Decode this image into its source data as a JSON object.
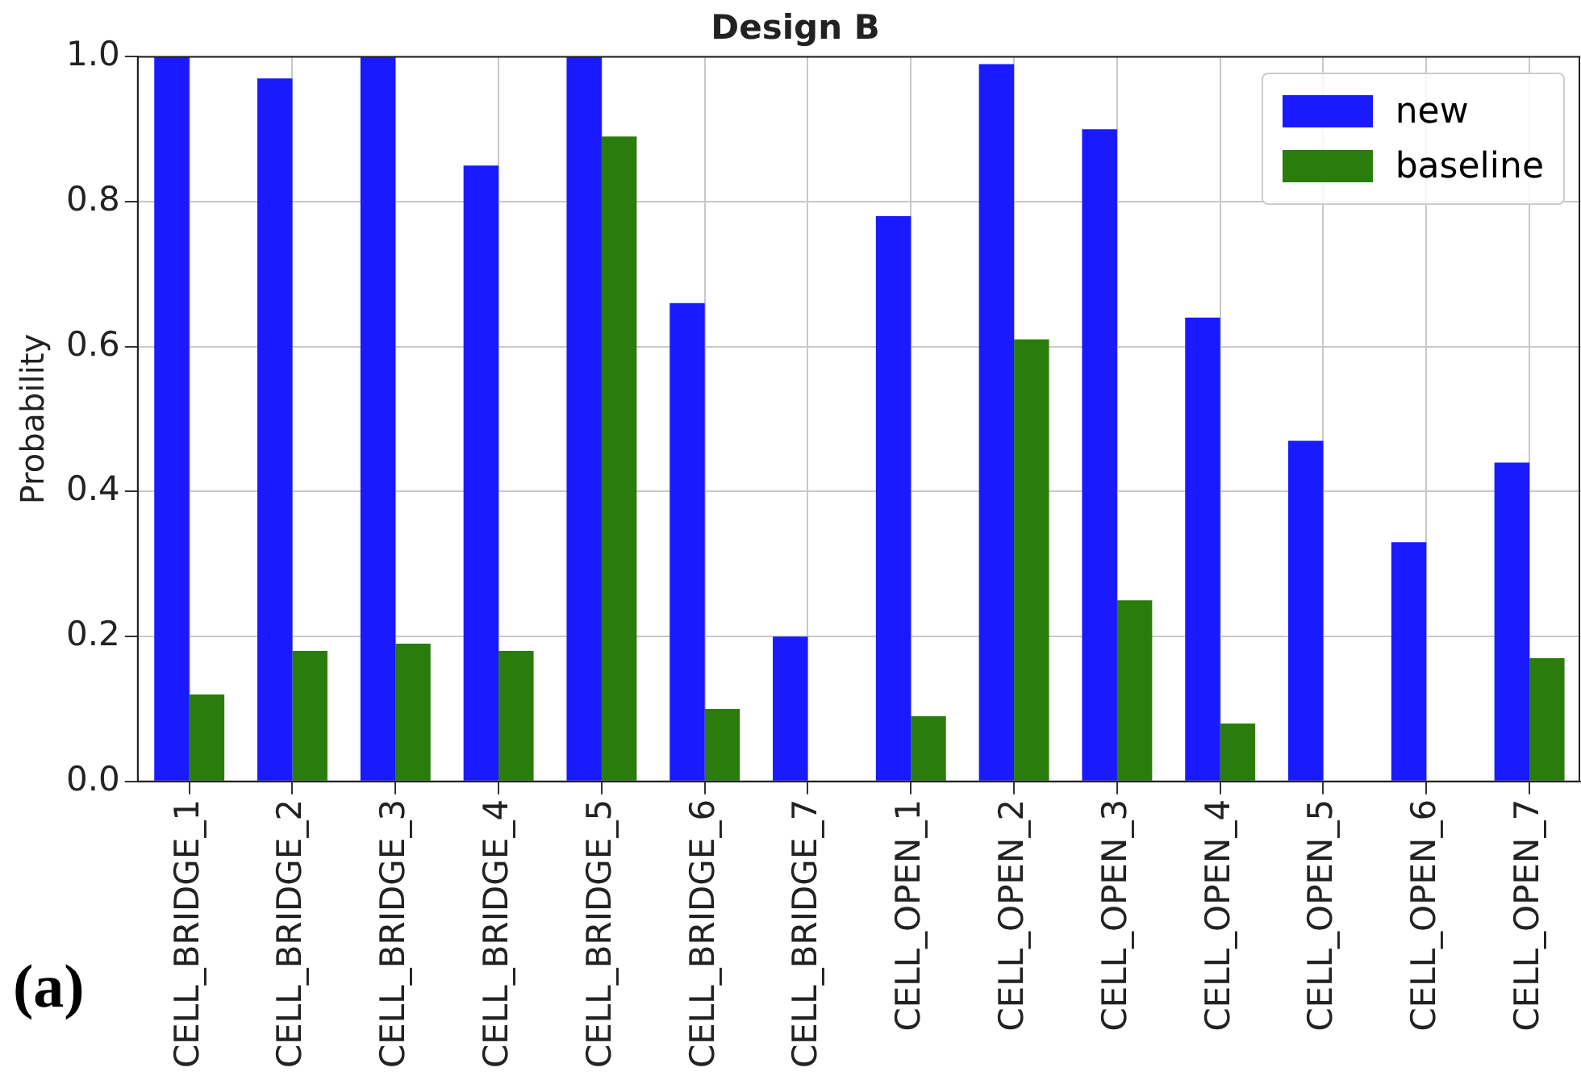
{
  "chart_data": {
    "type": "bar",
    "title": "Design B",
    "ylabel": "Probability",
    "categories": [
      "CELL_BRIDGE_1",
      "CELL_BRIDGE_2",
      "CELL_BRIDGE_3",
      "CELL_BRIDGE_4",
      "CELL_BRIDGE_5",
      "CELL_BRIDGE_6",
      "CELL_BRIDGE_7",
      "CELL_OPEN_1",
      "CELL_OPEN_2",
      "CELL_OPEN_3",
      "CELL_OPEN_4",
      "CELL_OPEN_5",
      "CELL_OPEN_6",
      "CELL_OPEN_7"
    ],
    "series": [
      {
        "name": "new",
        "color": "#1a1aff",
        "values": [
          1.0,
          0.97,
          1.0,
          0.85,
          1.0,
          0.66,
          0.2,
          0.78,
          0.99,
          0.9,
          0.64,
          0.47,
          0.33,
          0.44
        ]
      },
      {
        "name": "baseline",
        "color": "#2a7d0c",
        "values": [
          0.12,
          0.18,
          0.19,
          0.18,
          0.89,
          0.1,
          0,
          0.09,
          0.61,
          0.25,
          0.08,
          0,
          0,
          0.17
        ]
      }
    ],
    "ylim": [
      0,
      1.0
    ],
    "yticks": [
      {
        "value": 0,
        "label": "0.0"
      },
      {
        "value": 0.2,
        "label": "0.2"
      },
      {
        "value": 0.4,
        "label": "0.4"
      },
      {
        "value": 0.6,
        "label": "0.6"
      },
      {
        "value": 0.8,
        "label": "0.8"
      },
      {
        "value": 1.0,
        "label": "1.0"
      }
    ],
    "grid": true,
    "legend": "top right",
    "annotations": [
      "(a)"
    ]
  }
}
